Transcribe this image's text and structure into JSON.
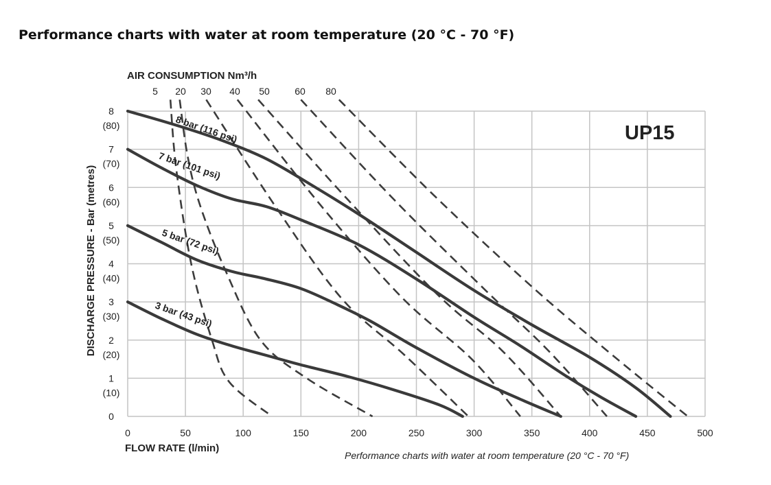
{
  "title": "Performance charts with water at room temperature (20 °C - 70 °F)",
  "chart_data": {
    "type": "line",
    "model": "UP15",
    "xlabel": "FLOW RATE (l/min)",
    "ylabel": "DISCHARGE PRESSURE - Bar (metres)",
    "top_axis_label": "AIR CONSUMPTION Nm³/h",
    "footnote": "Performance charts with water at room temperature (20 °C - 70 °F)",
    "xlim": [
      0,
      500
    ],
    "ylim": [
      0,
      8
    ],
    "grid": true,
    "x_ticks": [
      "0",
      "50",
      "100",
      "150",
      "200",
      "250",
      "300",
      "350",
      "400",
      "450",
      "500"
    ],
    "y_ticks": [
      {
        "bar": "0",
        "metres": ""
      },
      {
        "bar": "1",
        "metres": "(10)"
      },
      {
        "bar": "2",
        "metres": "(20)"
      },
      {
        "bar": "3",
        "metres": "(30)"
      },
      {
        "bar": "4",
        "metres": "(40)"
      },
      {
        "bar": "5",
        "metres": "(50)"
      },
      {
        "bar": "6",
        "metres": "(60)"
      },
      {
        "bar": "7",
        "metres": "(70)"
      },
      {
        "bar": "8",
        "metres": "(80)"
      }
    ],
    "series": [
      {
        "name": "8 bar (116 psi)",
        "x": [
          0,
          40,
          80,
          120,
          160,
          200,
          250,
          300,
          350,
          400,
          440,
          470
        ],
        "y": [
          8,
          7.65,
          7.25,
          6.75,
          6.05,
          5.3,
          4.3,
          3.3,
          2.4,
          1.55,
          0.75,
          0
        ]
      },
      {
        "name": "7 bar (101 psi)",
        "x": [
          0,
          30,
          60,
          90,
          120,
          150,
          200,
          250,
          300,
          340,
          380,
          410,
          440
        ],
        "y": [
          7,
          6.5,
          6.05,
          5.7,
          5.5,
          5.15,
          4.5,
          3.6,
          2.6,
          1.85,
          1.05,
          0.5,
          0
        ]
      },
      {
        "name": "5 bar (72 psi)",
        "x": [
          0,
          30,
          60,
          90,
          120,
          150,
          180,
          210,
          250,
          300,
          340,
          375
        ],
        "y": [
          5,
          4.55,
          4.1,
          3.8,
          3.6,
          3.35,
          2.95,
          2.5,
          1.8,
          1.0,
          0.45,
          0
        ]
      },
      {
        "name": "3 bar (43 psi)",
        "x": [
          0,
          30,
          60,
          90,
          120,
          150,
          190,
          230,
          270,
          290
        ],
        "y": [
          3,
          2.55,
          2.15,
          1.85,
          1.6,
          1.35,
          1.05,
          0.7,
          0.3,
          0
        ]
      }
    ],
    "air_consumption": [
      {
        "label": "5",
        "points": [
          [
            37,
            8.3
          ],
          [
            42,
            6.5
          ],
          [
            55,
            4.0
          ],
          [
            73,
            2.0
          ],
          [
            88,
            0.9
          ],
          [
            125,
            0
          ]
        ]
      },
      {
        "label": "20",
        "points": [
          [
            45,
            8.3
          ],
          [
            52,
            6.8
          ],
          [
            63,
            5.5
          ],
          [
            85,
            3.8
          ],
          [
            115,
            2.0
          ],
          [
            155,
            1.0
          ],
          [
            212,
            0
          ]
        ]
      },
      {
        "label": "30",
        "points": [
          [
            68,
            8.3
          ],
          [
            128,
            5.5
          ],
          [
            185,
            3.1
          ],
          [
            240,
            1.6
          ],
          [
            295,
            0
          ]
        ]
      },
      {
        "label": "40",
        "points": [
          [
            95,
            8.3
          ],
          [
            168,
            5.5
          ],
          [
            238,
            3.1
          ],
          [
            298,
            1.5
          ],
          [
            340,
            0
          ]
        ]
      },
      {
        "label": "50",
        "points": [
          [
            113,
            8.3
          ],
          [
            190,
            5.7
          ],
          [
            268,
            3.2
          ],
          [
            325,
            1.7
          ],
          [
            375,
            0
          ]
        ]
      },
      {
        "label": "60",
        "points": [
          [
            150,
            8.3
          ],
          [
            230,
            5.7
          ],
          [
            310,
            3.3
          ],
          [
            365,
            1.7
          ],
          [
            415,
            0
          ]
        ]
      },
      {
        "label": "80",
        "points": [
          [
            183,
            8.3
          ],
          [
            265,
            5.8
          ],
          [
            350,
            3.4
          ],
          [
            420,
            1.6
          ],
          [
            485,
            0
          ]
        ]
      }
    ]
  }
}
